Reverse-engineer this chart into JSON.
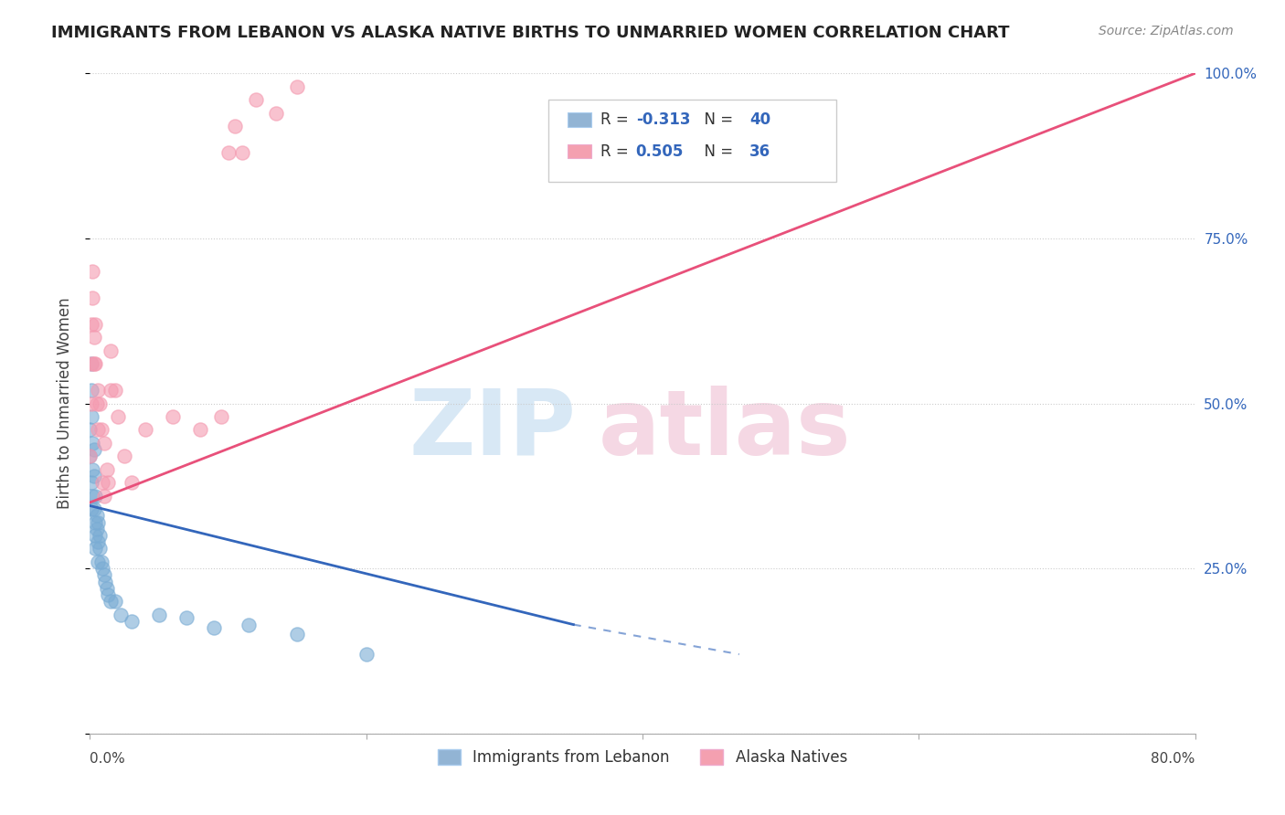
{
  "title": "IMMIGRANTS FROM LEBANON VS ALASKA NATIVE BIRTHS TO UNMARRIED WOMEN CORRELATION CHART",
  "source": "Source: ZipAtlas.com",
  "legend_label1": "Immigrants from Lebanon",
  "legend_label2": "Alaska Natives",
  "r1": -0.313,
  "n1": 40,
  "r2": 0.505,
  "n2": 36,
  "blue_color": "#92b4d4",
  "pink_color": "#f4a0b0",
  "blue_line_color": "#3366bb",
  "pink_line_color": "#e8507a",
  "blue_scatter_color": "#7aacd4",
  "pink_scatter_color": "#f49ab0",
  "watermark_zip_color": "#d8e8f5",
  "watermark_atlas_color": "#f5d8e4",
  "blue_points_x": [
    0.0,
    0.0,
    0.001,
    0.001,
    0.001,
    0.001,
    0.001,
    0.002,
    0.002,
    0.002,
    0.003,
    0.003,
    0.003,
    0.004,
    0.004,
    0.004,
    0.004,
    0.005,
    0.005,
    0.006,
    0.006,
    0.006,
    0.007,
    0.007,
    0.008,
    0.009,
    0.01,
    0.011,
    0.012,
    0.013,
    0.015,
    0.018,
    0.022,
    0.03,
    0.05,
    0.07,
    0.09,
    0.115,
    0.15,
    0.2
  ],
  "blue_points_y": [
    0.42,
    0.46,
    0.48,
    0.52,
    0.56,
    0.38,
    0.34,
    0.44,
    0.4,
    0.36,
    0.34,
    0.39,
    0.43,
    0.32,
    0.36,
    0.3,
    0.28,
    0.31,
    0.33,
    0.29,
    0.32,
    0.26,
    0.28,
    0.3,
    0.26,
    0.25,
    0.24,
    0.23,
    0.22,
    0.21,
    0.2,
    0.2,
    0.18,
    0.17,
    0.18,
    0.175,
    0.16,
    0.165,
    0.15,
    0.12
  ],
  "pink_points_x": [
    0.0,
    0.001,
    0.001,
    0.001,
    0.002,
    0.002,
    0.003,
    0.003,
    0.004,
    0.004,
    0.005,
    0.006,
    0.006,
    0.007,
    0.008,
    0.009,
    0.01,
    0.01,
    0.012,
    0.013,
    0.015,
    0.015,
    0.018,
    0.02,
    0.025,
    0.03,
    0.04,
    0.06,
    0.08,
    0.095,
    0.1,
    0.105,
    0.11,
    0.12,
    0.135,
    0.15
  ],
  "pink_points_y": [
    0.42,
    0.5,
    0.56,
    0.62,
    0.66,
    0.7,
    0.56,
    0.6,
    0.56,
    0.62,
    0.5,
    0.52,
    0.46,
    0.5,
    0.46,
    0.38,
    0.36,
    0.44,
    0.4,
    0.38,
    0.52,
    0.58,
    0.52,
    0.48,
    0.42,
    0.38,
    0.46,
    0.48,
    0.46,
    0.48,
    0.88,
    0.92,
    0.88,
    0.96,
    0.94,
    0.98
  ],
  "xlim": [
    0.0,
    0.8
  ],
  "ylim": [
    0.0,
    1.0
  ],
  "blue_trend_x0": 0.0,
  "blue_trend_y0": 0.345,
  "blue_trend_x1": 0.35,
  "blue_trend_y1": 0.165,
  "blue_trend_dash_x1": 0.47,
  "blue_trend_dash_y1": 0.12,
  "pink_trend_x0": 0.0,
  "pink_trend_y0": 0.35,
  "pink_trend_x1": 0.8,
  "pink_trend_y1": 1.0
}
